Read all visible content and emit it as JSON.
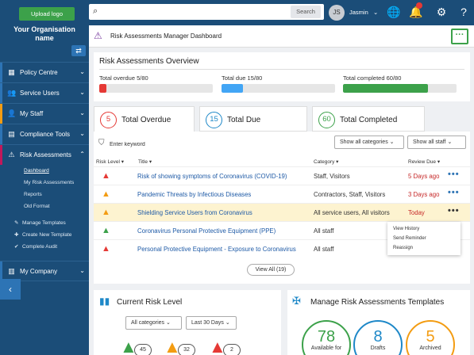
{
  "sidebar": {
    "upload_label": "Upload logo",
    "org_name": "Your Organisation name",
    "items": [
      {
        "label": "Policy Centre",
        "color": "#2d74b5"
      },
      {
        "label": "Service Users",
        "color": "#2d74b5"
      },
      {
        "label": "My Staff",
        "color": "#f39c12"
      },
      {
        "label": "Compliance Tools",
        "color": "#2d74b5"
      },
      {
        "label": "Risk Assessments",
        "color": "#c2185b"
      }
    ],
    "sub_items": [
      "Dashboard",
      "My Risk Assessments",
      "Reports",
      "Old Format"
    ],
    "actions": [
      "Manage Templates",
      "Create New Template",
      "Complete Audit"
    ],
    "my_company": "My Company"
  },
  "topbar": {
    "search_placeholder": "",
    "search_button": "Search",
    "avatar_initials": "JS",
    "user_name": "Jasmin"
  },
  "page_title": "Risk Assessments Manager Dashboard",
  "overview": {
    "title": "Risk Assessments Overview",
    "stats": [
      {
        "label": "Total overdue 5/80",
        "progress": 0.0625,
        "color": "#e53935"
      },
      {
        "label": "Total due 15/80",
        "progress": 0.1875,
        "color": "#42a5f5"
      },
      {
        "label": "Total completed 60/80",
        "progress": 0.75,
        "color": "#3ca14a"
      }
    ]
  },
  "tabs": [
    {
      "count": "5",
      "label": "Total Overdue",
      "color": "#e53935"
    },
    {
      "count": "15",
      "label": "Total Due",
      "color": "#1e88c8"
    },
    {
      "count": "60",
      "label": "Total Completed",
      "color": "#3ca14a"
    }
  ],
  "list": {
    "keyword_placeholder": "Enter keyword",
    "category_filter": "Show all categories",
    "staff_filter": "Show all staff",
    "headers": [
      "Risk Level",
      "Title",
      "Category",
      "Review Due"
    ],
    "rows": [
      {
        "risk": "high",
        "title": "Risk of showing symptoms of Coronavirus (COVID-19)",
        "category": "Staff, Visitors",
        "due": "5 Days ago",
        "due_color": "#c62828"
      },
      {
        "risk": "medium",
        "title": "Pandemic Threats by Infectious Diseases",
        "category": "Contractors, Staff, Visitors",
        "due": "3 Days ago",
        "due_color": "#c62828"
      },
      {
        "risk": "medium",
        "title": "Shielding Service Users from Coronavirus",
        "category": "All service users, All visitors",
        "due": "Today",
        "due_color": "#c62828"
      },
      {
        "risk": "low",
        "title": "Coronavirus Personal Protective Equipment (PPE)",
        "category": "All staff",
        "due": "",
        "due_color": "#333"
      },
      {
        "risk": "high",
        "title": "Personal Protective Equipment - Exposure to Coronavirus",
        "category": "All staff",
        "due": "",
        "due_color": "#333"
      }
    ],
    "menu": [
      "View History",
      "Send Reminder",
      "Reassign"
    ],
    "view_all": "View All (19)"
  },
  "risk_level": {
    "title": "Current Risk Level",
    "category_filter": "All categories",
    "period_filter": "Last 30 Days",
    "gauges": [
      {
        "count": "45",
        "color": "#3ca14a"
      },
      {
        "count": "32",
        "color": "#f39c12"
      },
      {
        "count": "2",
        "color": "#e53935"
      }
    ]
  },
  "templates": {
    "title": "Manage Risk Assessments Templates",
    "bubbles": [
      {
        "count": "78",
        "label": "Available for",
        "color": "#3ca14a"
      },
      {
        "count": "8",
        "label": "Drafts",
        "color": "#1e88c8"
      },
      {
        "count": "5",
        "label": "Archived",
        "color": "#f39c12"
      }
    ]
  }
}
